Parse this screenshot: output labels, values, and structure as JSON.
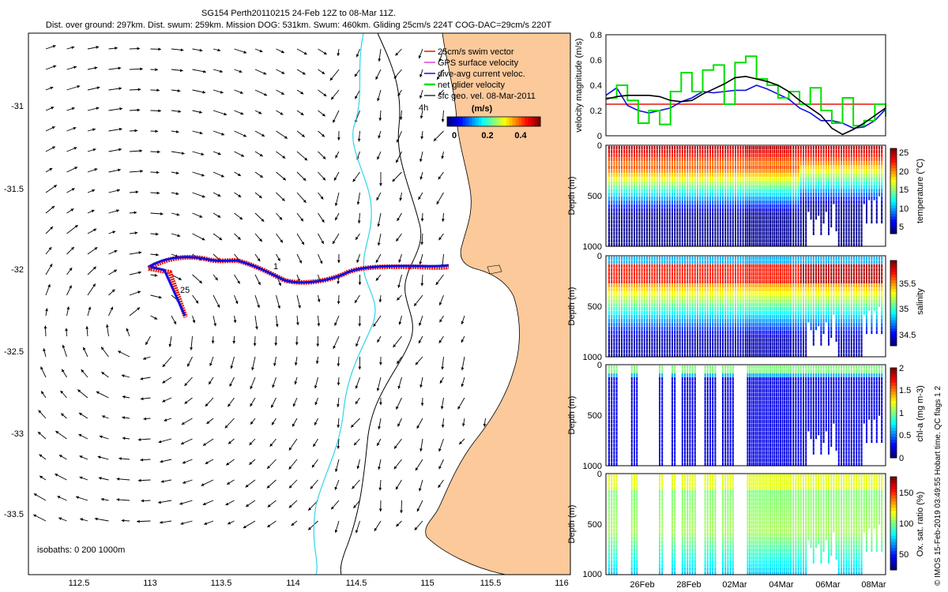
{
  "header": {
    "line1": "SG154 Perth20110215 24-Feb 12Z to 08-Mar 11Z.",
    "line2": "Dist. over ground: 297km. Dist. swum: 259km. Mission DOG: 531km. Swum: 460km. Gliding 25cm/s 224T COG-DAC=29cm/s 220T"
  },
  "credit": "© IMOS 15-Feb-2019 03:49:55 Hobart time. QC flags 1  2",
  "colors": {
    "land": "#FBC99A",
    "isobath_200": "#2FD5E8",
    "isobath_1000": "#000000",
    "track_swim": "#E8140A",
    "track_dac": "#1010E0",
    "net": "#00E000",
    "arrows": "#000000"
  },
  "chart_data": [
    {
      "type": "map",
      "name": "map",
      "xlim": [
        112.2,
        116
      ],
      "ylim": [
        -33.9,
        -30.6
      ],
      "xticks": [
        "112.5",
        "113",
        "113.5",
        "114",
        "114.5",
        "115",
        "115.5",
        "116"
      ],
      "yticks": [
        "-31",
        "-31.5",
        "-32",
        "-32.5",
        "-33",
        "-33.5"
      ],
      "legend": {
        "placement": "top-right",
        "entries": [
          "25cm/s swim vector",
          "GPS surface velocity",
          "dive-avg current veloc.",
          "net glider velocity",
          "sfc geo. vel. 08-Mar-2011"
        ],
        "colorbar_title": "(m/s)",
        "colorbar_ticks": [
          "0",
          "0.2",
          "0.4"
        ]
      },
      "annotations": {
        "label_25": "25",
        "label_1": "1",
        "label_4h": "4h",
        "isobaths": "isobaths: 0   200   1000m"
      }
    },
    {
      "type": "line",
      "name": "velocity",
      "ylabel": "velocity magnitude (m/s)",
      "ylim": [
        0,
        0.8
      ],
      "yticks": [
        "0",
        "0.2",
        "0.4",
        "0.6",
        "0.8"
      ],
      "series": [
        {
          "name": "swim",
          "color": "#E8140A",
          "values": [
            0.25,
            0.25,
            0.25,
            0.25,
            0.25,
            0.25,
            0.25,
            0.25,
            0.25,
            0.25,
            0.25,
            0.25,
            0.25,
            0.25,
            0.25,
            0.25,
            0.25,
            0.25,
            0.25,
            0.25,
            0.25,
            0.25,
            0.25,
            0.25,
            0.25,
            0.25,
            0.25
          ]
        },
        {
          "name": "dac",
          "color": "#1010E0",
          "values": [
            0.32,
            0.38,
            0.24,
            0.2,
            0.18,
            0.2,
            0.22,
            0.27,
            0.3,
            0.35,
            0.34,
            0.35,
            0.36,
            0.36,
            0.4,
            0.37,
            0.33,
            0.29,
            0.22,
            0.18,
            0.12,
            0.12,
            0.1,
            0.06,
            0.07,
            0.12,
            0.21
          ]
        },
        {
          "name": "net",
          "color": "#00E000",
          "values": [
            0.3,
            0.4,
            0.28,
            0.1,
            0.2,
            0.09,
            0.35,
            0.5,
            0.35,
            0.52,
            0.56,
            0.25,
            0.58,
            0.63,
            0.45,
            0.4,
            0.3,
            0.35,
            0.25,
            0.38,
            0.2,
            0.1,
            0.3,
            0.08,
            0.12,
            0.25,
            0.15
          ]
        },
        {
          "name": "sfc",
          "color": "#000000",
          "values": [
            0.29,
            0.31,
            0.32,
            0.32,
            0.32,
            0.31,
            0.28,
            0.27,
            0.28,
            0.33,
            0.37,
            0.41,
            0.46,
            0.47,
            0.45,
            0.43,
            0.4,
            0.35,
            0.28,
            0.22,
            0.16,
            0.06,
            0.01,
            0.05,
            0.1,
            0.16,
            0.22
          ]
        }
      ]
    },
    {
      "type": "heatmap",
      "name": "temperature",
      "ylabel": "Depth (m)",
      "cbar_label": "temperature (°C)",
      "ylim": [
        1000,
        0
      ],
      "yticks": [
        "0",
        "500",
        "1000"
      ],
      "crange": [
        3,
        26
      ],
      "cticks": [
        "5",
        "10",
        "15",
        "20",
        "25"
      ]
    },
    {
      "type": "heatmap",
      "name": "salinity",
      "ylabel": "Depth (m)",
      "cbar_label": "salinity",
      "ylim": [
        1000,
        0
      ],
      "yticks": [
        "0",
        "500",
        "1000"
      ],
      "crange": [
        34.3,
        35.8
      ],
      "cticks": [
        "34.5",
        "35",
        "35.5"
      ]
    },
    {
      "type": "heatmap",
      "name": "chla",
      "ylabel": "Depth (m)",
      "cbar_label": "chl-a (mg m-3)",
      "ylim": [
        1000,
        0
      ],
      "yticks": [
        "0",
        "500",
        "1000"
      ],
      "crange": [
        0,
        2
      ],
      "cticks": [
        "0",
        "0.5",
        "1",
        "1.5",
        "2"
      ]
    },
    {
      "type": "heatmap",
      "name": "oxygen",
      "ylabel": "Depth (m)",
      "cbar_label": "Ox. sat. ratio (%)",
      "ylim": [
        1000,
        0
      ],
      "yticks": [
        "0",
        "500",
        "1000"
      ],
      "crange": [
        20,
        170
      ],
      "cticks": [
        "50",
        "100",
        "150"
      ],
      "xticks": [
        "26Feb",
        "28Feb",
        "02Mar",
        "04Mar",
        "06Mar",
        "08Mar"
      ]
    }
  ]
}
